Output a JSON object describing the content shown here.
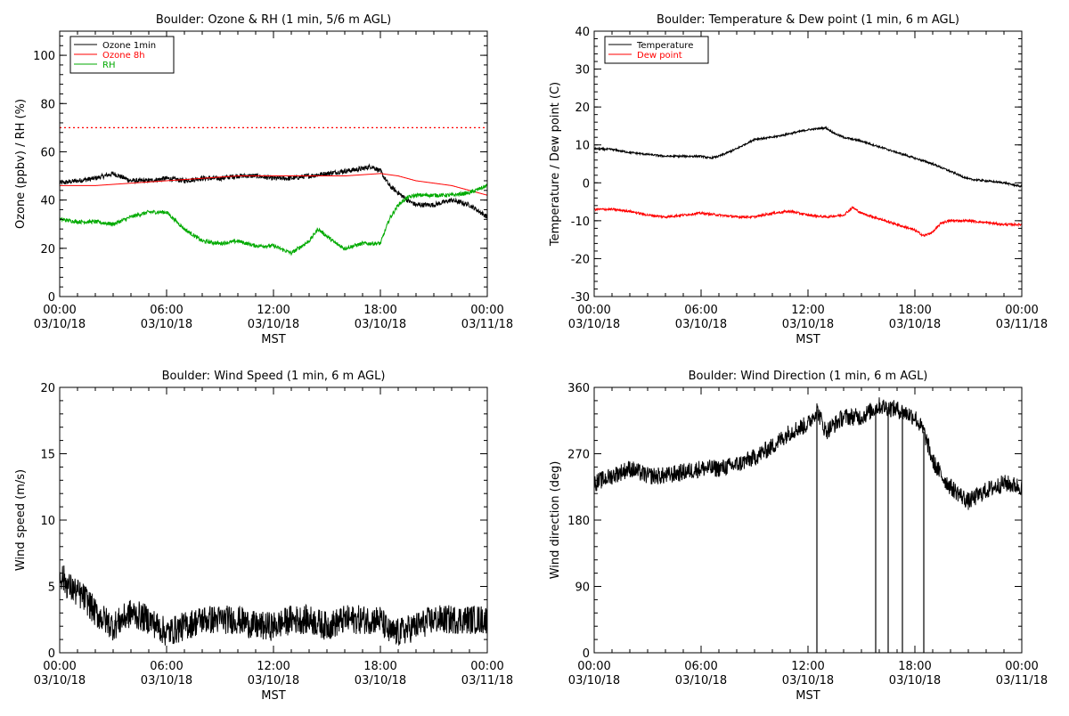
{
  "chart_data": [
    {
      "type": "line",
      "title": "Boulder: Ozone & RH (1 min, 5/6 m AGL)",
      "xlabel": "MST",
      "ylabel": "Ozone (ppbv) / RH (%)",
      "xticks": [
        {
          "time": "00:00",
          "date": "03/10/18"
        },
        {
          "time": "06:00",
          "date": "03/10/18"
        },
        {
          "time": "12:00",
          "date": "03/10/18"
        },
        {
          "time": "18:00",
          "date": "03/10/18"
        },
        {
          "time": "00:00",
          "date": "03/11/18"
        }
      ],
      "xlim": [
        0,
        24
      ],
      "ylim": [
        0,
        110
      ],
      "yticks": [
        0,
        20,
        40,
        60,
        80,
        100
      ],
      "legend": "top-left",
      "reference_line": {
        "y": 70,
        "color": "#ff0000",
        "style": "dotted"
      },
      "series": [
        {
          "name": "Ozone 1min",
          "color": "#000000",
          "noise": 1.0,
          "x": [
            0,
            1,
            2,
            3,
            4,
            5,
            6,
            7,
            8,
            9,
            10,
            11,
            12,
            13,
            14,
            15,
            16,
            17,
            17.5,
            18,
            18.5,
            19,
            19.5,
            20,
            21,
            22,
            23,
            24
          ],
          "y": [
            47,
            48,
            49,
            51,
            48,
            48,
            49,
            48,
            49,
            49,
            50,
            50,
            49,
            49,
            50,
            51,
            52,
            53,
            54,
            52,
            46,
            43,
            40,
            38,
            38,
            40,
            38,
            33
          ]
        },
        {
          "name": "Ozone 8h",
          "color": "#ff0000",
          "noise": 0,
          "x": [
            0,
            2,
            4,
            6,
            8,
            10,
            12,
            14,
            16,
            18,
            19,
            20,
            21,
            22,
            23,
            24
          ],
          "y": [
            46,
            46,
            47,
            48,
            49,
            50,
            50,
            50,
            50,
            51,
            50,
            48,
            47,
            46,
            44,
            42
          ]
        },
        {
          "name": "RH",
          "color": "#00aa00",
          "noise": 0.8,
          "x": [
            0,
            1,
            2,
            3,
            4,
            5,
            6,
            7,
            8,
            9,
            10,
            11,
            12,
            13,
            14,
            14.5,
            15,
            15.5,
            16,
            17,
            18,
            18.5,
            19,
            19.5,
            20,
            21,
            22,
            23,
            24
          ],
          "y": [
            32,
            31,
            31,
            30,
            33,
            35,
            35,
            28,
            23,
            22,
            23,
            21,
            21,
            18,
            23,
            28,
            25,
            22,
            20,
            22,
            22,
            32,
            38,
            41,
            42,
            42,
            42,
            43,
            46
          ]
        }
      ]
    },
    {
      "type": "line",
      "title": "Boulder: Temperature & Dew point (1 min, 6 m AGL)",
      "xlabel": "MST",
      "ylabel": "Temperature / Dew point (C)",
      "xticks": [
        {
          "time": "00:00",
          "date": "03/10/18"
        },
        {
          "time": "06:00",
          "date": "03/10/18"
        },
        {
          "time": "12:00",
          "date": "03/10/18"
        },
        {
          "time": "18:00",
          "date": "03/10/18"
        },
        {
          "time": "00:00",
          "date": "03/11/18"
        }
      ],
      "xlim": [
        0,
        24
      ],
      "ylim": [
        -30,
        40
      ],
      "yticks": [
        -30,
        -20,
        -10,
        0,
        10,
        20,
        30,
        40
      ],
      "legend": "top-left",
      "series": [
        {
          "name": "Temperature",
          "color": "#000000",
          "noise": 0.25,
          "x": [
            0,
            1,
            2,
            3,
            4,
            5,
            6,
            6.5,
            7,
            8,
            9,
            10,
            11,
            12,
            13,
            13.5,
            14,
            15,
            16,
            17,
            18,
            19,
            20,
            21,
            22,
            23,
            24
          ],
          "y": [
            9,
            8.8,
            8,
            7.5,
            7,
            7,
            7,
            6.5,
            7,
            9,
            11.5,
            12,
            13,
            14,
            14.5,
            13,
            12,
            11,
            9.5,
            8,
            6.5,
            5,
            3,
            1,
            0.5,
            0,
            -1
          ]
        },
        {
          "name": "Dew point",
          "color": "#ff0000",
          "noise": 0.3,
          "x": [
            0,
            1,
            2,
            3,
            4,
            5,
            6,
            7,
            8,
            9,
            10,
            11,
            12,
            13,
            14,
            14.5,
            15,
            16,
            17,
            18,
            18.5,
            19,
            19.5,
            20,
            21,
            22,
            23,
            24
          ],
          "y": [
            -7,
            -7,
            -7.5,
            -8.5,
            -9,
            -8.5,
            -8,
            -8.5,
            -9,
            -9,
            -8,
            -7.5,
            -8.5,
            -9,
            -8.5,
            -6.5,
            -8,
            -9.5,
            -11,
            -12.5,
            -14,
            -13,
            -10.5,
            -10,
            -10,
            -10.5,
            -11,
            -11
          ]
        }
      ]
    },
    {
      "type": "line",
      "title": "Boulder: Wind Speed (1 min, 6 m AGL)",
      "xlabel": "MST",
      "ylabel": "Wind speed (m/s)",
      "xticks": [
        {
          "time": "00:00",
          "date": "03/10/18"
        },
        {
          "time": "06:00",
          "date": "03/10/18"
        },
        {
          "time": "12:00",
          "date": "03/10/18"
        },
        {
          "time": "18:00",
          "date": "03/10/18"
        },
        {
          "time": "00:00",
          "date": "03/11/18"
        }
      ],
      "xlim": [
        0,
        24
      ],
      "ylim": [
        0,
        20
      ],
      "yticks": [
        0,
        5,
        10,
        15,
        20
      ],
      "series": [
        {
          "color": "#000000",
          "noise": 1.1,
          "x": [
            0,
            0.5,
            1,
            1.5,
            2,
            3,
            4,
            5,
            6,
            7,
            8,
            9,
            10,
            11,
            12,
            13,
            14,
            15,
            16,
            17,
            18,
            18.5,
            19,
            20,
            21,
            22,
            23,
            24
          ],
          "y": [
            6,
            5,
            4.5,
            4,
            3,
            2,
            3,
            2.5,
            1.5,
            2,
            2.5,
            2.5,
            2.5,
            2,
            2,
            2.5,
            2.5,
            2,
            2.5,
            2.5,
            2.5,
            1.5,
            1.5,
            2,
            2.5,
            2.5,
            2.5,
            2.5
          ]
        }
      ]
    },
    {
      "type": "line",
      "title": "Boulder: Wind Direction (1 min, 6 m AGL)",
      "xlabel": "MST",
      "ylabel": "Wind direction (deg)",
      "xticks": [
        {
          "time": "00:00",
          "date": "03/10/18"
        },
        {
          "time": "06:00",
          "date": "03/10/18"
        },
        {
          "time": "12:00",
          "date": "03/10/18"
        },
        {
          "time": "18:00",
          "date": "03/10/18"
        },
        {
          "time": "00:00",
          "date": "03/11/18"
        }
      ],
      "xlim": [
        0,
        24
      ],
      "ylim": [
        0,
        360
      ],
      "yticks": [
        0,
        90,
        180,
        270,
        360
      ],
      "series": [
        {
          "color": "#000000",
          "noise": 12,
          "x": [
            0,
            1,
            2,
            3,
            4,
            5,
            6,
            7,
            8,
            9,
            10,
            11,
            12,
            12.5,
            13,
            14,
            15,
            16,
            17,
            18,
            18.5,
            19,
            19.5,
            20,
            21,
            22,
            23,
            24
          ],
          "y": [
            230,
            240,
            250,
            240,
            240,
            245,
            250,
            250,
            255,
            265,
            280,
            300,
            310,
            330,
            300,
            320,
            320,
            335,
            330,
            320,
            300,
            260,
            240,
            225,
            205,
            220,
            230,
            225
          ],
          "spikes_to_zero": [
            12.5,
            15.8,
            16.5,
            17.3,
            18.5
          ]
        }
      ]
    }
  ]
}
